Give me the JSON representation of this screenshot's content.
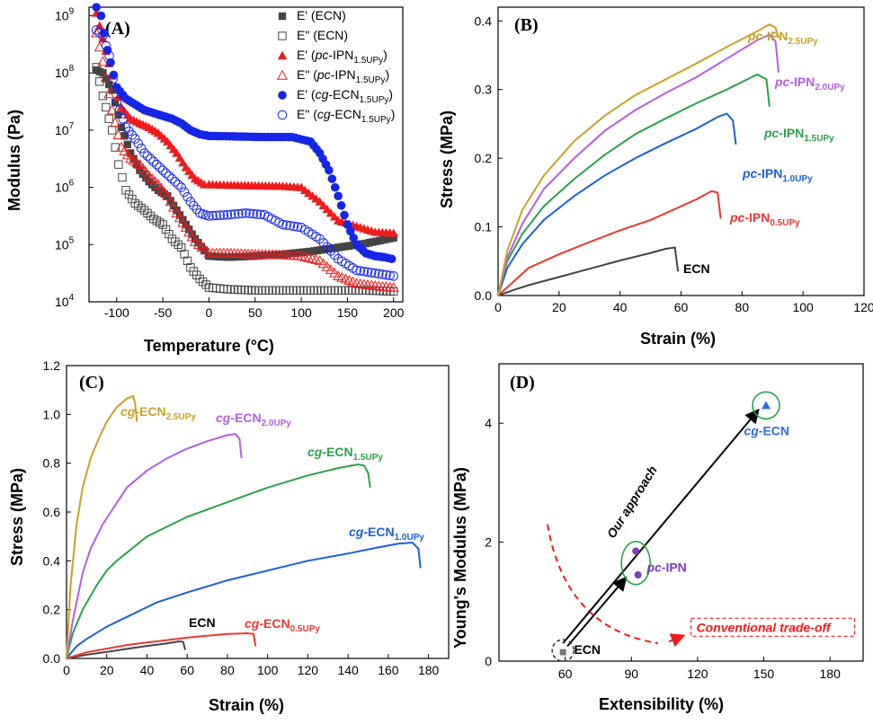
{
  "panels": {
    "A": {
      "label": "(A)"
    },
    "B": {
      "label": "(B)"
    },
    "C": {
      "label": "(C)"
    },
    "D": {
      "label": "(D)"
    }
  },
  "colors": {
    "ECN": "#444444",
    "p05": "#e8382f",
    "p10": "#1b5fd6",
    "p15": "#2aa14a",
    "p20": "#b45ee0",
    "p25": "#caa028",
    "red": "#ee1c1c",
    "blue": "#1526e6",
    "green": "#2aa14a",
    "purple": "#7a3fb0",
    "cyan_blue": "#2e6fd8"
  },
  "chart_data": [
    {
      "panel": "A",
      "type": "scatter",
      "xlabel": "Temperature (°C)",
      "ylabel": "Modulus (Pa)",
      "xlim": [
        -130,
        210
      ],
      "ylim_log10": [
        4,
        9.15
      ],
      "yscale": "log",
      "xticks": [
        -100,
        -50,
        0,
        50,
        100,
        150,
        200
      ],
      "xtick_labels": [
        "-100",
        "-50",
        "0",
        "50",
        "100",
        "150",
        "200"
      ],
      "yticks_log10": [
        4,
        5,
        6,
        7,
        8,
        9
      ],
      "legend_position": "top-right",
      "legend": [
        {
          "name": "E' (ECN)",
          "marker": "square-filled",
          "color": "#444444"
        },
        {
          "name": "E\" (ECN)",
          "marker": "square-open",
          "color": "#444444"
        },
        {
          "name": "E' (pc-IPN1.5UPy)",
          "marker": "triangle-filled",
          "color": "#ee1c1c"
        },
        {
          "name": "E\" (pc-IPN1.5UPy)",
          "marker": "triangle-open",
          "color": "#ee1c1c"
        },
        {
          "name": "E' (cg-ECN1.5UPy)",
          "marker": "circle-filled",
          "color": "#1526e6"
        },
        {
          "name": "E\" (cg-ECN1.5UPy)",
          "marker": "circle-open",
          "color": "#1526e6"
        }
      ],
      "legend_text": {
        "l1": {
          "pre": "E' (ECN)"
        },
        "l2": {
          "pre": "E\" (ECN)"
        },
        "l3": {
          "pre": "E' (",
          "it": "pc",
          "mid": "-IPN",
          "sub": "1.5UPy",
          "post": ")"
        },
        "l4": {
          "pre": "E\" (",
          "it": "pc",
          "mid": "-IPN",
          "sub": "1.5UPy",
          "post": ")"
        },
        "l5": {
          "pre": "E' (",
          "it": "cg",
          "mid": "-ECN",
          "sub": "1.5UPy",
          "post": ")"
        },
        "l6": {
          "pre": "E\" (",
          "it": "cg",
          "mid": "-ECN",
          "sub": "1.5UPy",
          "post": ")"
        }
      },
      "series": [
        {
          "name": "E' (ECN)",
          "marker": "square-filled",
          "color": "#444444",
          "x": [
            -122,
            -115,
            -105,
            -95,
            -85,
            -75,
            -65,
            -55,
            -45,
            -35,
            -25,
            -15,
            -5,
            0,
            20,
            50,
            80,
            110,
            140,
            170,
            200
          ],
          "log10y": [
            8.05,
            8.0,
            7.7,
            7.05,
            6.6,
            6.3,
            6.1,
            5.95,
            5.85,
            5.6,
            5.35,
            5.1,
            4.9,
            4.8,
            4.78,
            4.8,
            4.83,
            4.88,
            4.95,
            5.02,
            5.12
          ]
        },
        {
          "name": "E\" (ECN)",
          "marker": "square-open",
          "color": "#444444",
          "x": [
            -122,
            -115,
            -105,
            -98,
            -90,
            -80,
            -70,
            -60,
            -50,
            -40,
            -30,
            -20,
            -10,
            0,
            20,
            50,
            80,
            110,
            140,
            170,
            200
          ],
          "log10y": [
            8.1,
            7.6,
            7.0,
            6.4,
            5.95,
            5.72,
            5.6,
            5.45,
            5.35,
            5.1,
            4.95,
            4.6,
            4.4,
            4.25,
            4.22,
            4.2,
            4.2,
            4.2,
            4.2,
            4.2,
            4.18
          ]
        },
        {
          "name": "E' (pc-IPN1.5UPy)",
          "marker": "triangle-filled",
          "color": "#ee1c1c",
          "x": [
            -122,
            -115,
            -105,
            -95,
            -85,
            -75,
            -65,
            -55,
            -45,
            -35,
            -25,
            -15,
            -5,
            0,
            20,
            50,
            80,
            100,
            120,
            140,
            160,
            180,
            200
          ],
          "log10y": [
            9.05,
            8.6,
            7.95,
            7.4,
            7.2,
            7.12,
            7.05,
            6.95,
            6.8,
            6.6,
            6.35,
            6.15,
            6.05,
            6.05,
            6.04,
            6.03,
            6.02,
            6.0,
            5.75,
            5.42,
            5.32,
            5.22,
            5.2
          ]
        },
        {
          "name": "E\" (pc-IPN1.5UPy)",
          "marker": "triangle-open",
          "color": "#ee1c1c",
          "x": [
            -122,
            -115,
            -105,
            -95,
            -85,
            -75,
            -65,
            -55,
            -45,
            -35,
            -25,
            -15,
            0,
            20,
            50,
            80,
            100,
            120,
            140,
            160,
            180,
            200
          ],
          "log10y": [
            8.7,
            8.2,
            7.35,
            6.7,
            6.5,
            6.4,
            6.2,
            6.05,
            5.85,
            5.55,
            5.3,
            5.05,
            4.85,
            4.85,
            4.83,
            4.82,
            4.8,
            4.72,
            4.45,
            4.32,
            4.28,
            4.25
          ]
        },
        {
          "name": "E' (cg-ECN1.5UPy)",
          "marker": "circle-filled",
          "color": "#1526e6",
          "x": [
            -122,
            -117,
            -110,
            -100,
            -90,
            -80,
            -70,
            -60,
            -50,
            -40,
            -30,
            -20,
            -10,
            0,
            30,
            60,
            90,
            110,
            120,
            130,
            140,
            150,
            160,
            170,
            180,
            190,
            198
          ],
          "log10y": [
            9.15,
            9.0,
            8.4,
            7.75,
            7.55,
            7.45,
            7.35,
            7.3,
            7.25,
            7.2,
            7.12,
            7.0,
            6.93,
            6.9,
            6.89,
            6.88,
            6.88,
            6.8,
            6.6,
            6.3,
            5.85,
            5.35,
            5.0,
            4.85,
            4.8,
            4.78,
            4.75
          ]
        },
        {
          "name": "E\" (cg-ECN1.5UPy)",
          "marker": "circle-open",
          "color": "#1526e6",
          "x": [
            -122,
            -115,
            -108,
            -100,
            -90,
            -80,
            -70,
            -60,
            -50,
            -40,
            -30,
            -20,
            -10,
            0,
            20,
            40,
            60,
            80,
            100,
            120,
            140,
            160,
            180,
            200
          ],
          "log10y": [
            8.75,
            8.65,
            8.3,
            7.5,
            7.05,
            6.85,
            6.6,
            6.45,
            6.3,
            6.15,
            6.0,
            5.75,
            5.55,
            5.5,
            5.52,
            5.55,
            5.52,
            5.35,
            5.3,
            5.1,
            4.75,
            4.55,
            4.5,
            4.45
          ]
        }
      ]
    },
    {
      "panel": "B",
      "type": "line",
      "xlabel": "Strain (%)",
      "ylabel": "Stress (MPa)",
      "xlim": [
        0,
        120
      ],
      "ylim": [
        0,
        0.42
      ],
      "xticks": [
        0,
        20,
        40,
        60,
        80,
        100,
        120
      ],
      "xtick_labels": [
        "0",
        "20",
        "40",
        "60",
        "80",
        "100",
        "120"
      ],
      "yticks": [
        0,
        0.1,
        0.2,
        0.3,
        0.4
      ],
      "ytick_labels": [
        "0.0",
        "0.1",
        "0.2",
        "0.3",
        "0.4"
      ],
      "series": [
        {
          "key": "ECN",
          "label": {
            "pre": "ECN",
            "sub": ""
          },
          "color": "#444444",
          "x": [
            0,
            5,
            10,
            20,
            30,
            40,
            50,
            55,
            58,
            59
          ],
          "y": [
            0,
            0.008,
            0.015,
            0.027,
            0.039,
            0.051,
            0.062,
            0.068,
            0.07,
            0.035
          ]
        },
        {
          "key": "p05",
          "label": {
            "pre": "pc",
            "mid": "-IPN",
            "sub": "0.5UPy"
          },
          "color": "#e8382f",
          "x": [
            0,
            5,
            10,
            20,
            30,
            40,
            50,
            60,
            65,
            70,
            72,
            73
          ],
          "y": [
            0,
            0.02,
            0.04,
            0.06,
            0.078,
            0.095,
            0.11,
            0.13,
            0.14,
            0.152,
            0.15,
            0.112
          ]
        },
        {
          "key": "p10",
          "label": {
            "pre": "pc",
            "mid": "-IPN",
            "sub": "1.0UPy"
          },
          "color": "#1b5fd6",
          "x": [
            0,
            3,
            8,
            15,
            25,
            35,
            45,
            55,
            65,
            72,
            75,
            77,
            78
          ],
          "y": [
            0,
            0.04,
            0.075,
            0.11,
            0.145,
            0.175,
            0.2,
            0.222,
            0.243,
            0.26,
            0.265,
            0.255,
            0.22
          ]
        },
        {
          "key": "p15",
          "label": {
            "pre": "pc",
            "mid": "-IPN",
            "sub": "1.5UPy"
          },
          "color": "#2aa14a",
          "x": [
            0,
            3,
            8,
            15,
            25,
            35,
            45,
            55,
            65,
            75,
            85,
            88,
            89
          ],
          "y": [
            0,
            0.05,
            0.09,
            0.13,
            0.17,
            0.205,
            0.235,
            0.258,
            0.28,
            0.3,
            0.322,
            0.315,
            0.275
          ]
        },
        {
          "key": "p20",
          "label": {
            "pre": "pc",
            "mid": "-IPN",
            "sub": "2.0UPy"
          },
          "color": "#b45ee0",
          "x": [
            0,
            3,
            8,
            15,
            25,
            35,
            45,
            55,
            65,
            75,
            85,
            89,
            91,
            92
          ],
          "y": [
            0,
            0.055,
            0.105,
            0.155,
            0.2,
            0.24,
            0.27,
            0.295,
            0.318,
            0.345,
            0.372,
            0.38,
            0.37,
            0.325
          ]
        },
        {
          "key": "p25",
          "label": {
            "pre": "pc",
            "mid": "-IPN",
            "sub": "2.5UPy"
          },
          "color": "#caa028",
          "x": [
            0,
            3,
            8,
            15,
            25,
            35,
            45,
            55,
            65,
            75,
            85,
            89,
            91,
            92
          ],
          "y": [
            0,
            0.065,
            0.125,
            0.175,
            0.225,
            0.262,
            0.292,
            0.315,
            0.338,
            0.362,
            0.385,
            0.395,
            0.39,
            0.375
          ]
        }
      ]
    },
    {
      "panel": "C",
      "type": "line",
      "xlabel": "Strain (%)",
      "ylabel": "Stress (MPa)",
      "xlim": [
        0,
        190
      ],
      "ylim": [
        0,
        1.2
      ],
      "xticks": [
        0,
        20,
        40,
        60,
        80,
        100,
        120,
        140,
        160,
        180
      ],
      "xtick_labels": [
        "0",
        "20",
        "40",
        "60",
        "80",
        "100",
        "120",
        "140",
        "160",
        "180"
      ],
      "yticks": [
        0,
        0.2,
        0.4,
        0.6,
        0.8,
        1.0,
        1.2
      ],
      "ytick_labels": [
        "0.0",
        "0.2",
        "0.4",
        "0.6",
        "0.8",
        "1.0",
        "1.2"
      ],
      "series": [
        {
          "key": "ECN",
          "label": {
            "pre": "ECN",
            "sub": ""
          },
          "color": "#444444",
          "x": [
            0,
            10,
            20,
            30,
            40,
            50,
            56,
            58,
            59
          ],
          "y": [
            0,
            0.015,
            0.027,
            0.039,
            0.051,
            0.062,
            0.07,
            0.068,
            0.035
          ]
        },
        {
          "key": "p05",
          "label": {
            "pre": "cg",
            "mid": "-ECN",
            "sub": "0.5UPy"
          },
          "color": "#e8382f",
          "x": [
            0,
            10,
            20,
            30,
            40,
            50,
            60,
            70,
            80,
            90,
            93,
            94
          ],
          "y": [
            0,
            0.025,
            0.04,
            0.055,
            0.065,
            0.075,
            0.085,
            0.093,
            0.1,
            0.103,
            0.1,
            0.05
          ]
        },
        {
          "key": "p10",
          "label": {
            "pre": "cg",
            "mid": "-ECN",
            "sub": "1.0UPy"
          },
          "color": "#1b5fd6",
          "x": [
            0,
            5,
            10,
            20,
            30,
            45,
            60,
            80,
            100,
            120,
            140,
            155,
            165,
            172,
            175,
            176
          ],
          "y": [
            0,
            0.05,
            0.08,
            0.13,
            0.17,
            0.23,
            0.27,
            0.32,
            0.36,
            0.4,
            0.43,
            0.455,
            0.47,
            0.475,
            0.45,
            0.37
          ]
        },
        {
          "key": "p15",
          "label": {
            "pre": "cg",
            "mid": "-ECN",
            "sub": "1.5UPy"
          },
          "color": "#2aa14a",
          "x": [
            0,
            3,
            8,
            15,
            20,
            25,
            40,
            60,
            80,
            100,
            120,
            135,
            145,
            148,
            150,
            151
          ],
          "y": [
            0,
            0.1,
            0.2,
            0.3,
            0.36,
            0.4,
            0.5,
            0.58,
            0.64,
            0.7,
            0.75,
            0.78,
            0.795,
            0.79,
            0.76,
            0.7
          ]
        },
        {
          "key": "p20",
          "label": {
            "pre": "cg",
            "mid": "-ECN",
            "sub": "2.0UPy"
          },
          "color": "#b45ee0",
          "x": [
            0,
            3,
            8,
            12,
            18,
            22,
            30,
            40,
            50,
            60,
            70,
            80,
            84,
            86,
            87
          ],
          "y": [
            0,
            0.15,
            0.35,
            0.45,
            0.55,
            0.6,
            0.7,
            0.77,
            0.82,
            0.86,
            0.89,
            0.915,
            0.92,
            0.9,
            0.82
          ]
        },
        {
          "key": "p25",
          "label": {
            "pre": "cg",
            "mid": "-ECN",
            "sub": "2.5UPy"
          },
          "color": "#caa028",
          "x": [
            0,
            2,
            5,
            8,
            12,
            16,
            20,
            25,
            30,
            33,
            34,
            35
          ],
          "y": [
            0,
            0.3,
            0.55,
            0.7,
            0.82,
            0.9,
            0.97,
            1.03,
            1.065,
            1.075,
            1.05,
            0.97
          ]
        }
      ]
    },
    {
      "panel": "D",
      "type": "scatter",
      "xlabel": "Extensibility (%)",
      "ylabel": "Young's Modulus (MPa)",
      "xlim": [
        30,
        195
      ],
      "ylim": [
        0,
        5
      ],
      "xticks": [
        60,
        90,
        120,
        150,
        180
      ],
      "xtick_labels": [
        "60",
        "90",
        "120",
        "150",
        "180"
      ],
      "yticks": [
        0,
        2,
        4
      ],
      "ytick_labels": [
        "0",
        "2",
        "4"
      ],
      "points": [
        {
          "group": "ECN",
          "x": 59,
          "y": 0.15,
          "marker": "square",
          "color": "#777777"
        },
        {
          "group": "pc-IPN",
          "x": 92,
          "y": 1.85,
          "marker": "circle",
          "color": "#7a3fb0"
        },
        {
          "group": "pc-IPN",
          "x": 93,
          "y": 1.45,
          "marker": "circle",
          "color": "#7a3fb0"
        },
        {
          "group": "cg-ECN",
          "x": 151,
          "y": 4.3,
          "marker": "triangle",
          "color": "#2e6fd8"
        }
      ],
      "labels": {
        "ecn": "ECN",
        "pc_it": "pc",
        "pc_rest": "-IPN",
        "cg_it": "cg",
        "cg_rest": "-ECN",
        "approach": "Our approach",
        "tradeoff": "Conventional trade-off"
      }
    }
  ]
}
